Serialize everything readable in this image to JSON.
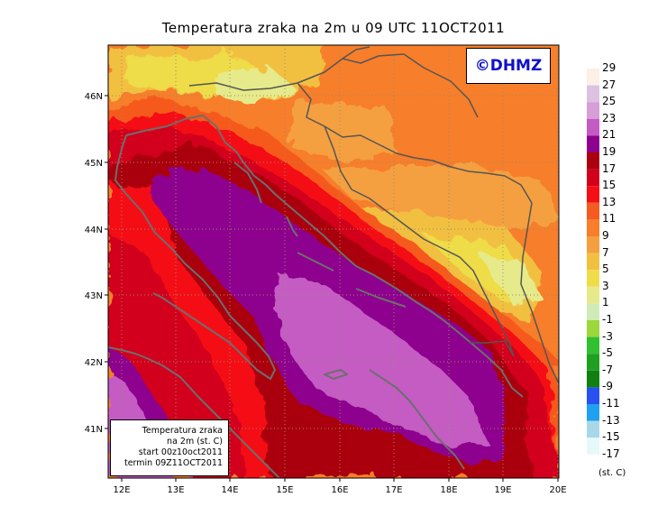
{
  "title": "Temperatura zraka na 2m u 09 UTC 11OCT2011",
  "logo_text": "©DHMZ",
  "info_box": {
    "line1": "Temperatura zraka",
    "line2": "na 2m (st. C)",
    "line3": "start 00z10oct2011",
    "line4": "termin 09Z11OCT2011"
  },
  "units": "(st. C)",
  "lat_labels": [
    "46N",
    "45N",
    "44N",
    "43N",
    "42N",
    "41N"
  ],
  "lon_labels": [
    "12E",
    "13E",
    "14E",
    "15E",
    "16E",
    "17E",
    "18E",
    "19E",
    "20E"
  ],
  "legend": [
    {
      "label": "29",
      "color": "#fbefe6"
    },
    {
      "label": "27",
      "color": "#dcc2e0"
    },
    {
      "label": "25",
      "color": "#d79ed8"
    },
    {
      "label": "23",
      "color": "#c45bc4"
    },
    {
      "label": "21",
      "color": "#8e008e"
    },
    {
      "label": "19",
      "color": "#aa0010"
    },
    {
      "label": "17",
      "color": "#d2001a"
    },
    {
      "label": "15",
      "color": "#f50e14"
    },
    {
      "label": "13",
      "color": "#f55a1e"
    },
    {
      "label": "11",
      "color": "#f77e2a"
    },
    {
      "label": "9",
      "color": "#f4a040"
    },
    {
      "label": "7",
      "color": "#f2c040"
    },
    {
      "label": "5",
      "color": "#eedc48"
    },
    {
      "label": "3",
      "color": "#e6ea8a"
    },
    {
      "label": "1",
      "color": "#d0eab8"
    },
    {
      "label": "-1",
      "color": "#9cd73c"
    },
    {
      "label": "-3",
      "color": "#30c030"
    },
    {
      "label": "-5",
      "color": "#20a020"
    },
    {
      "label": "-7",
      "color": "#108010"
    },
    {
      "label": "-9",
      "color": "#2850f0"
    },
    {
      "label": "-11",
      "color": "#1fa0f0"
    },
    {
      "label": "-13",
      "color": "#a8d8e8"
    },
    {
      "label": "-15",
      "color": "#e6f8fa"
    },
    {
      "label": "-17",
      "color": "#ffffff"
    }
  ],
  "colors": {
    "coastline": "#6e6e6e",
    "border": "#555555",
    "gridline": "#a08a6a"
  }
}
